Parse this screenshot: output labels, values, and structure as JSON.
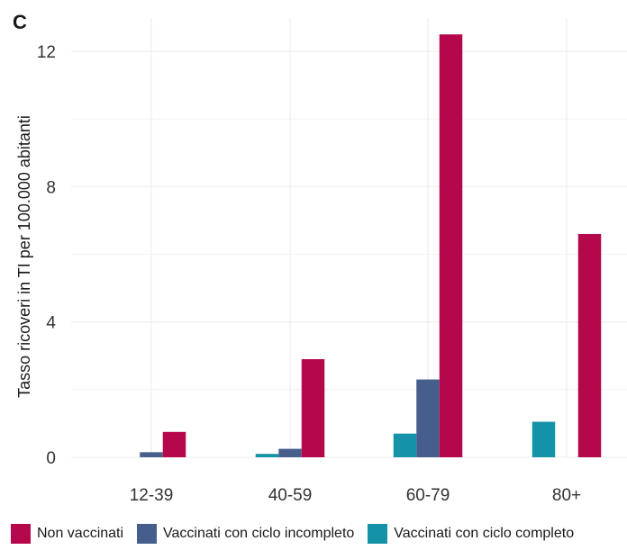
{
  "panel_label": "C",
  "colors": {
    "non_vaccinati": "#b5084c",
    "incompleto": "#465e8c",
    "completo": "#1493a8",
    "grid": "#ebebeb"
  },
  "chart_data": {
    "type": "bar",
    "title": "",
    "xlabel": "",
    "ylabel": "Tasso ricoveri in TI per 100.000 abitanti",
    "categories": [
      "12-39",
      "40-59",
      "60-79",
      "80+"
    ],
    "ylim": [
      0,
      12.7
    ],
    "yticks": [
      0,
      4,
      8,
      12
    ],
    "grid": true,
    "series": [
      {
        "name": "Vaccinati con ciclo completo",
        "key": "completo",
        "values": [
          0,
          0.1,
          0.7,
          1.05
        ]
      },
      {
        "name": "Vaccinati con ciclo incompleto",
        "key": "incompleto",
        "values": [
          0.15,
          0.25,
          2.3,
          0
        ]
      },
      {
        "name": "Non vaccinati",
        "key": "non_vaccinati",
        "values": [
          0.75,
          2.9,
          12.5,
          6.6
        ]
      }
    ],
    "legend": {
      "position": "bottom",
      "items": [
        {
          "label": "Non vaccinati",
          "key": "non_vaccinati"
        },
        {
          "label": "Vaccinati con ciclo incompleto",
          "key": "incompleto"
        },
        {
          "label": "Vaccinati con ciclo completo",
          "key": "completo"
        }
      ]
    }
  }
}
